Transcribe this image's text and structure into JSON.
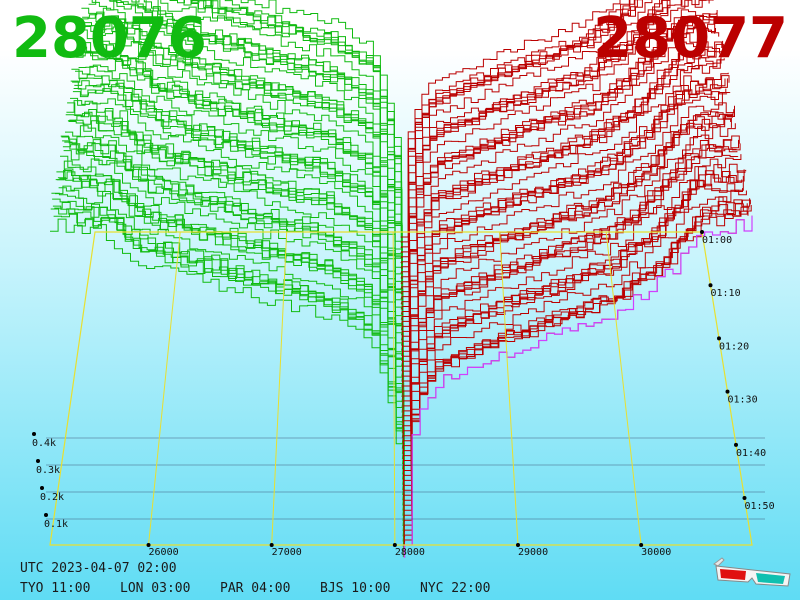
{
  "header": {
    "bid_price": "28076",
    "ask_price": "28077"
  },
  "chart_data": {
    "type": "area",
    "description": "3D order book depth",
    "price_ticks": [
      26000,
      27000,
      28000,
      29000,
      30000
    ],
    "xlim": [
      25200,
      30900
    ],
    "depth_ticks": [
      "0.1k",
      "0.2k",
      "0.3k",
      "0.4k"
    ],
    "time_ticks": [
      "01:00",
      "01:10",
      "01:20",
      "01:30",
      "01:40",
      "01:50"
    ],
    "mid_price": 28076.5,
    "series": [
      {
        "name": "bids",
        "color": "#11bb11",
        "profile": [
          [
            25200,
            0.43
          ],
          [
            25600,
            0.42
          ],
          [
            25900,
            0.38
          ],
          [
            26300,
            0.36
          ],
          [
            26900,
            0.33
          ],
          [
            27400,
            0.31
          ],
          [
            27800,
            0.27
          ],
          [
            28000,
            0.16
          ],
          [
            28076,
            0.0
          ]
        ]
      },
      {
        "name": "asks",
        "color": "#bb0000",
        "profile": [
          [
            28077,
            0.0
          ],
          [
            28150,
            0.17
          ],
          [
            28350,
            0.22
          ],
          [
            28800,
            0.25
          ],
          [
            29300,
            0.28
          ],
          [
            29800,
            0.31
          ],
          [
            30200,
            0.36
          ],
          [
            30500,
            0.42
          ],
          [
            30900,
            0.43
          ]
        ]
      }
    ]
  },
  "footer": {
    "utc": "UTC 2023-04-07 02:00",
    "tyo": "TYO 11:00",
    "lon": "LON 03:00",
    "par": "PAR 04:00",
    "bjs": "BJS 10:00",
    "nyc": "NYC 22:00"
  },
  "icons": {
    "glasses": "3d-glasses-icon"
  }
}
